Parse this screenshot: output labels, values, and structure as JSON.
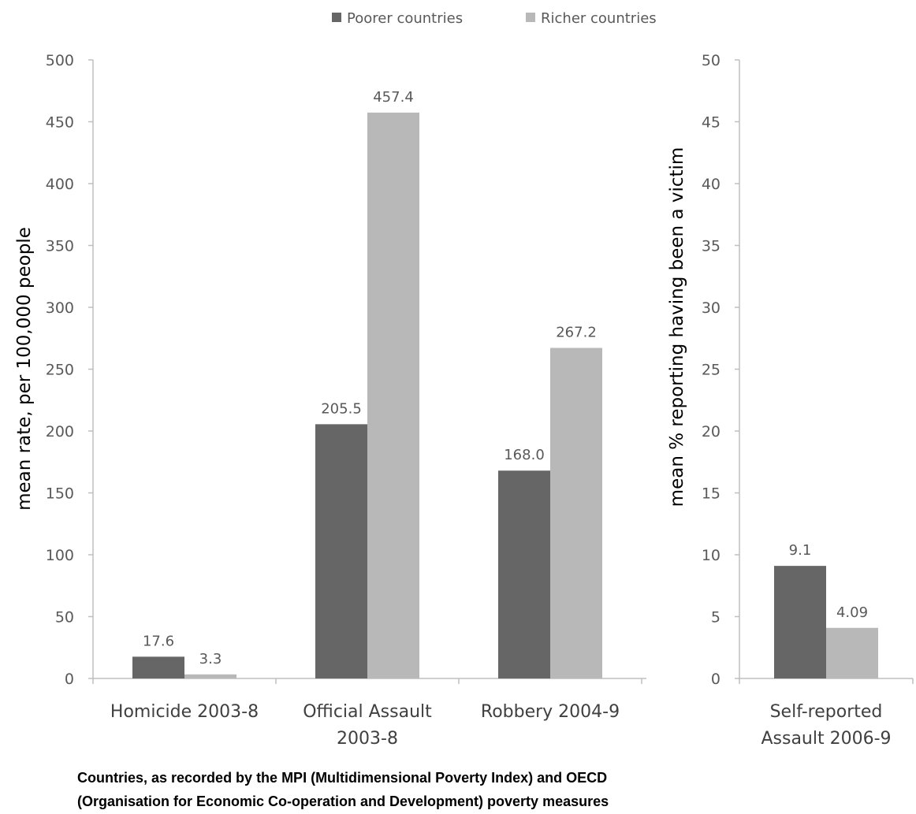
{
  "chart_data": [
    {
      "type": "bar",
      "categories": [
        [
          "Homicide 2003-8"
        ],
        [
          "Official Assault",
          "2003-8"
        ],
        [
          "Robbery 2004-9"
        ]
      ],
      "series": [
        {
          "name": "Poorer countries",
          "values": [
            17.6,
            205.5,
            168.0
          ],
          "labels": [
            "17.6",
            "205.5",
            "168.0"
          ]
        },
        {
          "name": "Richer countries",
          "values": [
            3.3,
            457.4,
            267.2
          ],
          "labels": [
            "3.3",
            "457.4",
            "267.2"
          ]
        }
      ],
      "ylabel": "mean rate, per 100,000 people",
      "ylim": [
        0,
        500
      ],
      "yticks": [
        "0",
        "50",
        "100",
        "150",
        "200",
        "250",
        "300",
        "350",
        "400",
        "450",
        "500"
      ],
      "grid": false
    },
    {
      "type": "bar",
      "categories": [
        [
          "Self-reported",
          "Assault 2006-9"
        ]
      ],
      "series": [
        {
          "name": "Poorer countries",
          "values": [
            9.1
          ],
          "labels": [
            "9.1"
          ]
        },
        {
          "name": "Richer countries",
          "values": [
            4.09
          ],
          "labels": [
            "4.09"
          ]
        }
      ],
      "ylabel": "mean % reporting having been a victim",
      "ylim": [
        0,
        50
      ],
      "yticks": [
        "0",
        "5",
        "10",
        "15",
        "20",
        "25",
        "30",
        "35",
        "40",
        "45",
        "50"
      ],
      "grid": false
    }
  ],
  "legend": {
    "position": "top-center",
    "items": [
      {
        "label": "Poorer countries",
        "color": "#666666"
      },
      {
        "label": "Richer countries",
        "color": "#b8b8b8"
      }
    ]
  },
  "colors": {
    "poorer": "#666666",
    "richer": "#b8b8b8",
    "axis": "#bfbfbf"
  },
  "caption": {
    "line1": "Countries, as recorded by the MPI (Multidimensional Poverty Index) and OECD",
    "line2": "(Organisation for Economic Co-operation and Development) poverty measures"
  }
}
